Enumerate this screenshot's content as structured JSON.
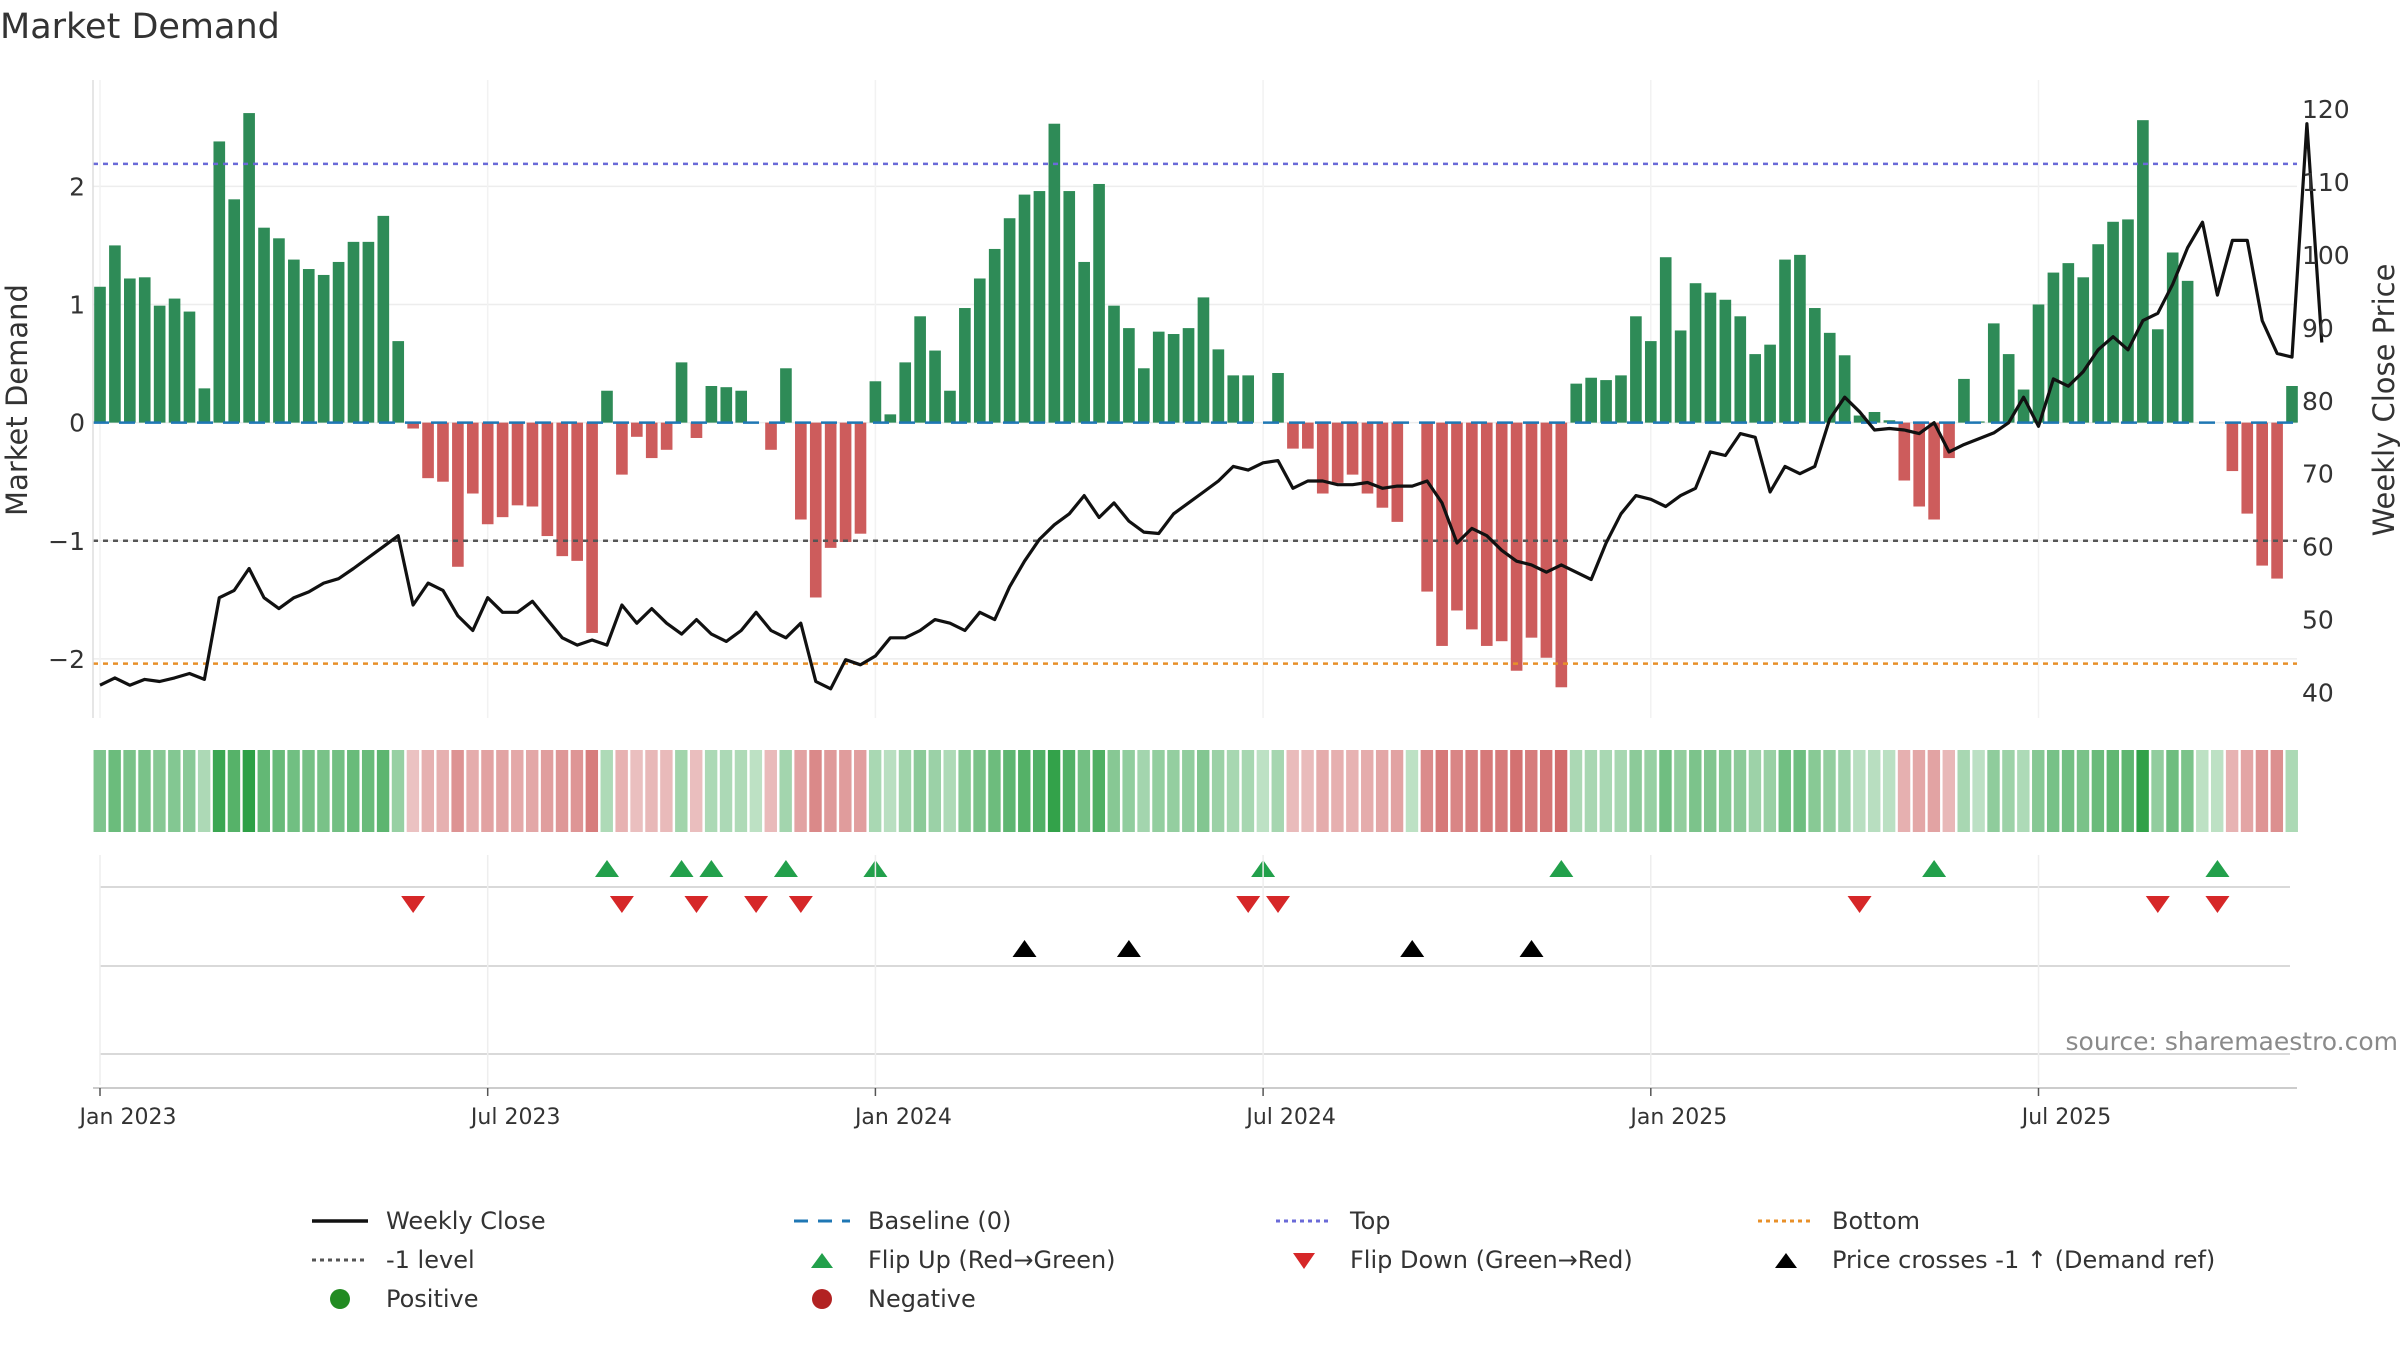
{
  "chart_data": {
    "type": "bar",
    "title": "Market Demand",
    "ylabel": "Market Demand",
    "y2label": "Weekly Close Price",
    "ylim": [
      -2.5,
      2.9
    ],
    "y2lim": [
      36.5,
      124
    ],
    "yticks": [
      "2",
      "1",
      "0",
      "−1",
      "−2"
    ],
    "ytick_values": [
      2,
      1,
      0,
      -1,
      -2
    ],
    "y2ticks": [
      "120",
      "110",
      "100",
      "90",
      "80",
      "70",
      "60",
      "50",
      "40"
    ],
    "y2tick_values": [
      120,
      110,
      100,
      90,
      80,
      70,
      60,
      50,
      40
    ],
    "xticks": [
      "Jan 2023",
      "Jul 2023",
      "Jan 2024",
      "Jul 2024",
      "Jan 2025",
      "Jul 2025"
    ],
    "xtick_weeks": [
      1,
      27,
      53,
      79,
      105,
      131
    ],
    "source": "source: sharemaestro.com",
    "top_level": 2.19,
    "bottom_level": -2.04,
    "minus1_level": -1,
    "colors": {
      "positive_bar": "#2e8b57",
      "negative_bar": "#cd5c5c",
      "price": "#111111",
      "baseline": "#1f77b4",
      "top": "#6a6ad8",
      "bottom": "#e8902a",
      "minus1": "#555555",
      "flip_up": "#22a04b",
      "flip_down": "#d62728",
      "cross": "#000000",
      "positive_dot": "#228b22",
      "negative_dot": "#b22222"
    },
    "series": [
      {
        "name": "Market Demand",
        "values": [
          1.15,
          1.5,
          1.22,
          1.23,
          0.99,
          1.05,
          0.94,
          0.29,
          2.38,
          1.89,
          2.62,
          1.65,
          1.56,
          1.38,
          1.3,
          1.25,
          1.36,
          1.53,
          1.53,
          1.75,
          0.69,
          -0.05,
          -0.47,
          -0.5,
          -1.22,
          -0.6,
          -0.86,
          -0.8,
          -0.7,
          -0.71,
          -0.96,
          -1.13,
          -1.17,
          -1.78,
          0.27,
          -0.44,
          -0.12,
          -0.3,
          -0.23,
          0.51,
          -0.13,
          0.31,
          0.3,
          0.27,
          0.0,
          -0.23,
          0.46,
          -0.82,
          -1.48,
          -1.06,
          -1.01,
          -0.94,
          0.35,
          0.07,
          0.51,
          0.9,
          0.61,
          0.27,
          0.97,
          1.22,
          1.47,
          1.73,
          1.93,
          1.96,
          2.53,
          1.96,
          1.36,
          2.02,
          0.99,
          0.8,
          0.46,
          0.77,
          0.75,
          0.8,
          1.06,
          0.62,
          0.4,
          0.4,
          0.0,
          0.42,
          -0.22,
          -0.22,
          -0.6,
          -0.51,
          -0.44,
          -0.6,
          -0.72,
          -0.84,
          0.0,
          -1.43,
          -1.89,
          -1.59,
          -1.75,
          -1.89,
          -1.85,
          -2.1,
          -1.82,
          -1.99,
          -2.24,
          0.33,
          0.38,
          0.36,
          0.4,
          0.9,
          0.69,
          1.4,
          0.78,
          1.18,
          1.1,
          1.04,
          0.9,
          0.58,
          0.66,
          1.38,
          1.42,
          0.97,
          0.76,
          0.57,
          0.06,
          0.09,
          0.02,
          -0.49,
          -0.71,
          -0.82,
          -0.3,
          0.37,
          0.01,
          0.84,
          0.58,
          0.28,
          1.0,
          1.27,
          1.35,
          1.23,
          1.51,
          1.7,
          1.72,
          2.56,
          0.79,
          1.44,
          1.2,
          0.0,
          0.0,
          -0.41,
          -0.77,
          -1.21,
          -1.32,
          0.31
        ]
      },
      {
        "name": "Weekly Close",
        "values": [
          41,
          42,
          41,
          41.8,
          41.5,
          42,
          42.6,
          41.8,
          53,
          54,
          57,
          53,
          51.5,
          53,
          53.8,
          55,
          55.6,
          57,
          58.5,
          60,
          61.5,
          52,
          55,
          54,
          50.5,
          48.5,
          53,
          51,
          51,
          52.5,
          50,
          47.5,
          46.5,
          47.2,
          46.5,
          52,
          49.5,
          51.5,
          49.5,
          48,
          50,
          48,
          47,
          48.5,
          51,
          48.5,
          47.5,
          49.5,
          41.5,
          40.5,
          44.5,
          43.8,
          45,
          47.5,
          47.5,
          48.5,
          50,
          49.5,
          48.5,
          51,
          50,
          54.5,
          58,
          61,
          63,
          64.5,
          67,
          64,
          66,
          63.5,
          62,
          61.8,
          64.5,
          66,
          67.5,
          69,
          71,
          70.5,
          71.5,
          71.8,
          68,
          69,
          69,
          68.5,
          68.5,
          68.8,
          68,
          68.3,
          68.3,
          69,
          66,
          60.5,
          62.5,
          61.5,
          59.5,
          58,
          57.5,
          56.5,
          57.5,
          56.5,
          55.5,
          60.5,
          64.5,
          67,
          66.5,
          65.5,
          67,
          68,
          73,
          72.5,
          75.5,
          75,
          67.5,
          71,
          70,
          71,
          77.5,
          80.5,
          78.5,
          76,
          76.2,
          76,
          75.5,
          77,
          73,
          74,
          74.8,
          75.6,
          77,
          80.5,
          76.5,
          83,
          82,
          84,
          87,
          88.8,
          87,
          91,
          92,
          96,
          101,
          104.5,
          94.5,
          102,
          102,
          91,
          86.5,
          86,
          118,
          88
        ]
      }
    ],
    "flip_up_weeks": [
      35,
      40,
      42,
      47,
      53,
      79,
      99,
      124,
      143
    ],
    "flip_down_weeks": [
      22,
      36,
      41,
      45,
      48,
      78,
      80,
      119,
      139,
      143
    ],
    "cross_weeks": [
      63,
      70,
      89,
      97
    ],
    "legend": [
      {
        "label": "Weekly Close",
        "kind": "line-solid"
      },
      {
        "label": "Baseline (0)",
        "kind": "line-dash-baseline"
      },
      {
        "label": "Top",
        "kind": "line-dot-top"
      },
      {
        "label": "Bottom",
        "kind": "line-dot-bottom"
      },
      {
        "label": "-1 level",
        "kind": "line-dot-minus1"
      },
      {
        "label": "Flip Up (Red→Green)",
        "kind": "tri-up-green"
      },
      {
        "label": "Flip Down (Green→Red)",
        "kind": "tri-down-red"
      },
      {
        "label": "Price crosses -1 ↑ (Demand ref)",
        "kind": "tri-up-black"
      },
      {
        "label": "Positive",
        "kind": "dot-green"
      },
      {
        "label": "Negative",
        "kind": "dot-red"
      }
    ]
  }
}
